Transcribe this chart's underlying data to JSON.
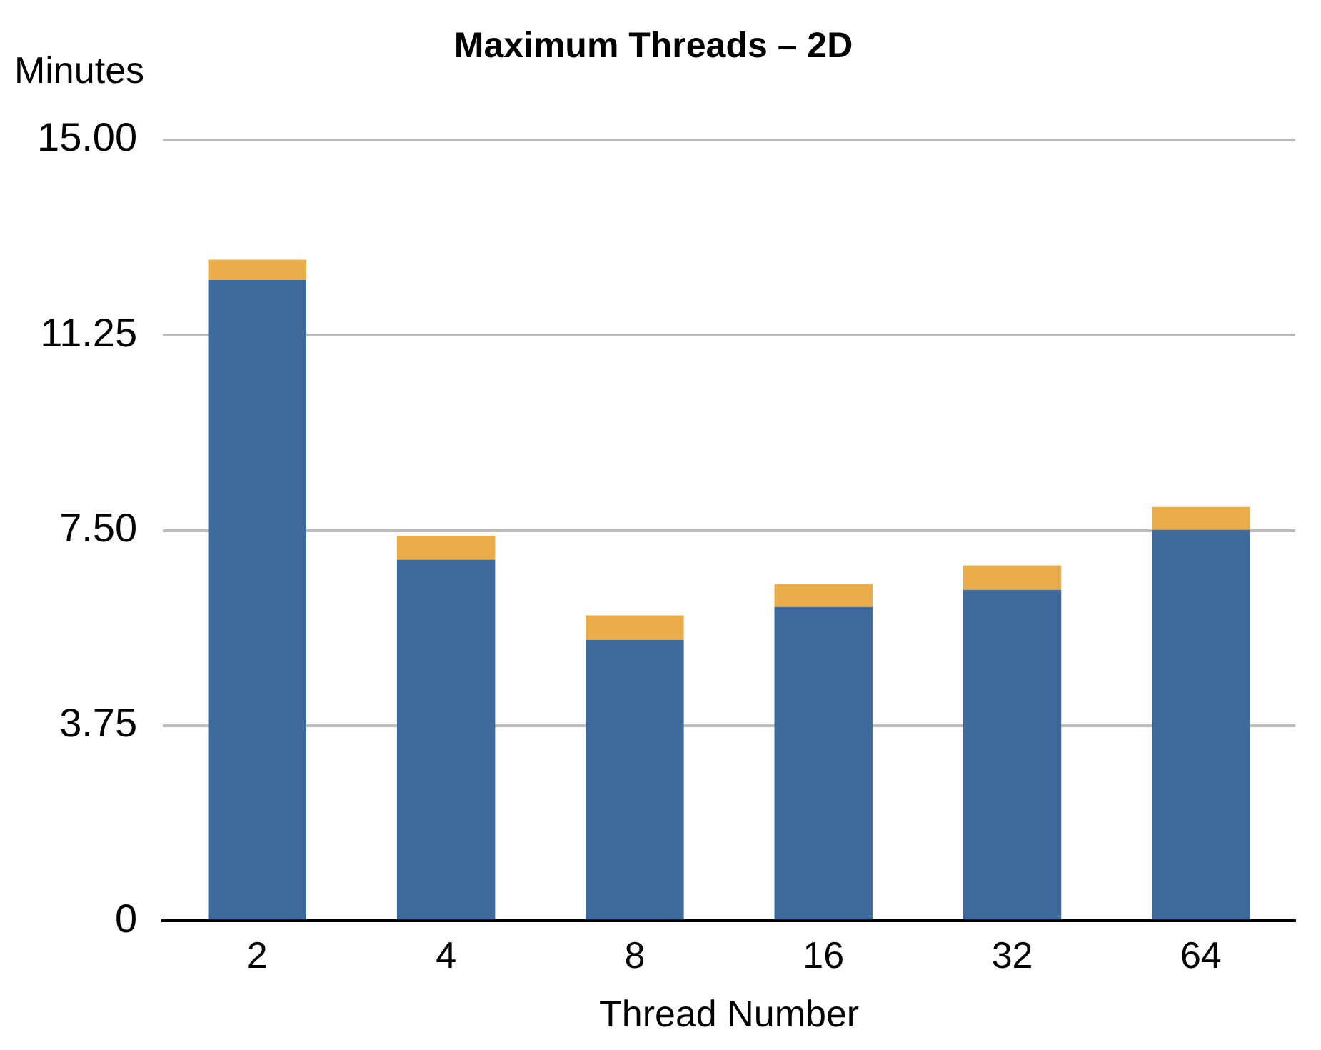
{
  "chart_data": {
    "type": "bar",
    "title": "Maximum Threads – 2D",
    "xlabel": "Thread Number",
    "ylabel": "Minutes",
    "categories": [
      "2",
      "4",
      "8",
      "16",
      "32",
      "64"
    ],
    "stacked": true,
    "series": [
      {
        "color": "#3d6a9b",
        "values": [
          12.31,
          6.94,
          5.4,
          6.03,
          6.36,
          7.51
        ]
      },
      {
        "color": "#e9ad4c",
        "values": [
          0.39,
          0.46,
          0.47,
          0.44,
          0.47,
          0.44
        ]
      }
    ],
    "ylim": [
      0,
      15
    ],
    "yticks": [
      0,
      3.75,
      {
        "value": 7.5,
        "label": "7.50"
      },
      11.25,
      {
        "value": 15,
        "label": "15.00"
      }
    ],
    "grid": "y",
    "legend": false
  }
}
